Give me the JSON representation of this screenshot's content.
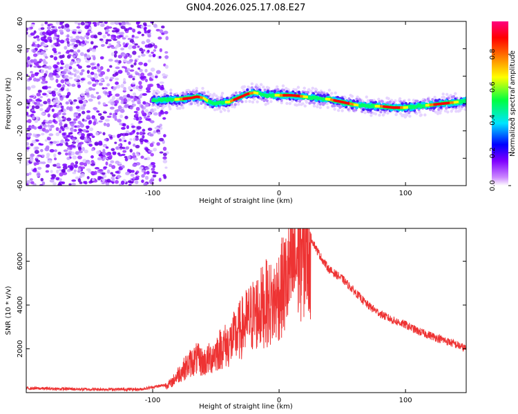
{
  "title": "GN04.2026.025.17.08.E27",
  "chart_data": [
    {
      "type": "heatmap",
      "description_role": "spectrogram",
      "xlabel": "Height of straight line (km)",
      "ylabel": "Frequency (Hz)",
      "xlim": [
        -200,
        148
      ],
      "ylim": [
        -60,
        60
      ],
      "xticks": [
        -100,
        0,
        100
      ],
      "xtick_labels": [
        "-100",
        "0",
        "100"
      ],
      "yticks": [
        -60,
        -40,
        -20,
        0,
        20,
        40,
        60
      ],
      "ytick_labels": [
        "-60",
        "-40",
        "-20",
        "0",
        "20",
        "40",
        "60"
      ],
      "noise_region_x": [
        -200,
        -88
      ],
      "signal_start_x": -100,
      "ridge": {
        "x": [
          -100,
          -90,
          -80,
          -70,
          -65,
          -60,
          -55,
          -50,
          -45,
          -40,
          -35,
          -30,
          -25,
          -20,
          -15,
          -10,
          -5,
          0,
          10,
          20,
          30,
          40,
          50,
          60,
          70,
          80,
          90,
          100,
          110,
          120,
          130,
          140,
          148
        ],
        "freq": [
          2,
          3,
          3,
          4,
          5,
          4,
          1,
          0,
          1,
          1,
          3,
          5,
          7,
          8,
          7,
          6,
          6,
          6,
          6,
          5,
          4,
          3,
          1,
          -1,
          -2,
          -2,
          -3,
          -3,
          -2,
          -1,
          0,
          1,
          2
        ]
      },
      "colorbar": {
        "label": "Normalized spectral amplitude",
        "min": 0.0,
        "max": 1.0,
        "ticks": [
          0.0,
          0.2,
          0.4,
          0.6,
          0.8
        ],
        "tick_labels": [
          "0.0",
          "0.2",
          "0.4",
          "0.6",
          "0.8"
        ],
        "colors": [
          "#ffffff",
          "#9a00ff",
          "#0000ff",
          "#00e5ff",
          "#00ff40",
          "#ffff00",
          "#ff8000",
          "#ff0000",
          "#ff0080"
        ]
      }
    },
    {
      "type": "line",
      "xlabel": "Height of straight line (km)",
      "ylabel": "SNR (10 * v/v)",
      "xlim": [
        -200,
        148
      ],
      "ylim": [
        0,
        7500
      ],
      "xticks": [
        -100,
        0,
        100
      ],
      "xtick_labels": [
        "-100",
        "0",
        "100"
      ],
      "yticks": [
        2000,
        4000,
        6000
      ],
      "ytick_labels": [
        "2000",
        "4000",
        "6000"
      ],
      "line_color": "#ee3333",
      "series": [
        {
          "name": "SNR",
          "x": [
            -200,
            -150,
            -110,
            -100,
            -90,
            -85,
            -80,
            -75,
            -70,
            -65,
            -60,
            -55,
            -50,
            -45,
            -40,
            -35,
            -30,
            -25,
            -20,
            -15,
            -10,
            -5,
            0,
            5,
            10,
            15,
            20,
            22,
            25,
            30,
            35,
            40,
            50,
            60,
            70,
            80,
            90,
            100,
            110,
            120,
            130,
            140,
            148
          ],
          "y": [
            200,
            150,
            150,
            250,
            350,
            500,
            900,
            1200,
            1500,
            1700,
            1500,
            1700,
            2000,
            2300,
            2400,
            2800,
            3200,
            3600,
            3900,
            4200,
            4500,
            4400,
            5000,
            5500,
            6200,
            6800,
            7100,
            7300,
            7100,
            6500,
            6000,
            5600,
            5200,
            4600,
            4000,
            3600,
            3300,
            3100,
            2800,
            2600,
            2400,
            2200,
            2000
          ]
        }
      ]
    }
  ]
}
